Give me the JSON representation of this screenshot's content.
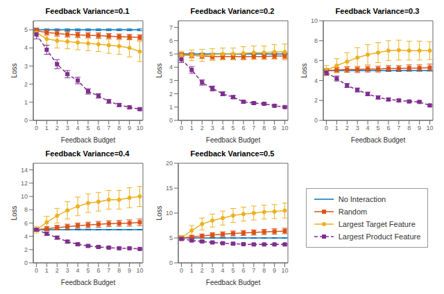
{
  "chart_data": [
    {
      "type": "line",
      "title": "Feedback Variance=0.1",
      "xlabel": "Feedback Budget",
      "ylabel": "Loss",
      "x": [
        0,
        1,
        2,
        3,
        4,
        5,
        6,
        7,
        8,
        9,
        10
      ],
      "xlim": [
        -0.3,
        10.3
      ],
      "xticks": [
        0,
        1,
        2,
        3,
        4,
        5,
        6,
        7,
        8,
        9,
        10
      ],
      "ylim": [
        0,
        5.5
      ],
      "yticks": [
        0,
        1,
        2,
        3,
        4,
        5
      ],
      "grid": false,
      "series": [
        {
          "name": "No Interaction",
          "color": "#0072BD",
          "marker": "none",
          "line_style": "solid",
          "values": [
            5.0,
            5.0,
            5.0,
            5.0,
            5.0,
            5.0,
            5.0,
            5.0,
            5.0,
            5.0,
            5.0
          ],
          "error": [
            0.05,
            0.05,
            0.05,
            0.05,
            0.05,
            0.05,
            0.05,
            0.05,
            0.05,
            0.05,
            0.05
          ]
        },
        {
          "name": "Random",
          "color": "#D95319",
          "marker": "square",
          "line_style": "solid",
          "values": [
            4.95,
            4.85,
            4.8,
            4.75,
            4.72,
            4.7,
            4.68,
            4.65,
            4.62,
            4.6,
            4.58
          ],
          "error": [
            0.15,
            0.15,
            0.15,
            0.15,
            0.15,
            0.15,
            0.15,
            0.15,
            0.15,
            0.15,
            0.15
          ]
        },
        {
          "name": "Largest Target Feature",
          "color": "#EDB120",
          "marker": "circle",
          "line_style": "solid",
          "values": [
            4.85,
            4.5,
            4.4,
            4.35,
            4.3,
            4.25,
            4.2,
            4.15,
            4.1,
            4.0,
            3.8
          ],
          "error": [
            0.15,
            0.35,
            0.4,
            0.4,
            0.4,
            0.4,
            0.4,
            0.45,
            0.45,
            0.5,
            0.55
          ]
        },
        {
          "name": "Largest Product Feature",
          "color": "#7E2F8E",
          "marker": "square",
          "line_style": "dashed",
          "values": [
            4.75,
            3.9,
            3.1,
            2.55,
            2.2,
            1.6,
            1.35,
            1.05,
            0.85,
            0.72,
            0.62
          ],
          "error": [
            0.25,
            0.25,
            0.25,
            0.2,
            0.18,
            0.15,
            0.12,
            0.1,
            0.08,
            0.07,
            0.06
          ]
        }
      ]
    },
    {
      "type": "line",
      "title": "Feedback Variance=0.2",
      "xlabel": "Feedback Budget",
      "ylabel": "Loss",
      "x": [
        0,
        1,
        2,
        3,
        4,
        5,
        6,
        7,
        8,
        9,
        10
      ],
      "xlim": [
        -0.3,
        10.3
      ],
      "xticks": [
        0,
        1,
        2,
        3,
        4,
        5,
        6,
        7,
        8,
        9,
        10
      ],
      "ylim": [
        0,
        7.5
      ],
      "yticks": [
        0,
        1,
        2,
        3,
        4,
        5,
        6,
        7
      ],
      "grid": false,
      "series": [
        {
          "name": "No Interaction",
          "color": "#0072BD",
          "marker": "none",
          "line_style": "solid",
          "values": [
            5.0,
            5.0,
            5.0,
            5.0,
            5.0,
            5.0,
            5.0,
            5.0,
            5.0,
            5.0,
            5.0
          ],
          "error": [
            0.05,
            0.05,
            0.05,
            0.05,
            0.05,
            0.05,
            0.05,
            0.05,
            0.05,
            0.05,
            0.05
          ]
        },
        {
          "name": "Random",
          "color": "#D95319",
          "marker": "square",
          "line_style": "solid",
          "values": [
            4.95,
            4.9,
            4.85,
            4.8,
            4.8,
            4.8,
            4.8,
            4.8,
            4.8,
            4.85,
            4.85
          ],
          "error": [
            0.15,
            0.2,
            0.2,
            0.2,
            0.2,
            0.2,
            0.2,
            0.2,
            0.2,
            0.2,
            0.2
          ]
        },
        {
          "name": "Largest Target Feature",
          "color": "#EDB120",
          "marker": "circle",
          "line_style": "solid",
          "values": [
            4.9,
            4.9,
            4.9,
            4.95,
            5.0,
            5.0,
            5.05,
            5.1,
            5.1,
            5.15,
            5.15
          ],
          "error": [
            0.3,
            0.4,
            0.45,
            0.45,
            0.45,
            0.45,
            0.5,
            0.5,
            0.5,
            0.55,
            0.6
          ]
        },
        {
          "name": "Largest Product Feature",
          "color": "#7E2F8E",
          "marker": "square",
          "line_style": "dashed",
          "values": [
            4.6,
            3.8,
            2.85,
            2.4,
            2.0,
            1.75,
            1.4,
            1.3,
            1.25,
            1.1,
            1.0
          ],
          "error": [
            0.25,
            0.25,
            0.2,
            0.18,
            0.15,
            0.12,
            0.1,
            0.08,
            0.08,
            0.07,
            0.06
          ]
        }
      ]
    },
    {
      "type": "line",
      "title": "Feedback Variance=0.3",
      "xlabel": "Feedback Budget",
      "ylabel": "Loss",
      "x": [
        0,
        1,
        2,
        3,
        4,
        5,
        6,
        7,
        8,
        9,
        10
      ],
      "xlim": [
        -0.3,
        10.3
      ],
      "xticks": [
        0,
        1,
        2,
        3,
        4,
        5,
        6,
        7,
        8,
        9,
        10
      ],
      "ylim": [
        0,
        10
      ],
      "yticks": [
        0,
        2,
        4,
        6,
        8,
        10
      ],
      "grid": false,
      "series": [
        {
          "name": "No Interaction",
          "color": "#0072BD",
          "marker": "none",
          "line_style": "solid",
          "values": [
            5.0,
            5.0,
            5.0,
            5.0,
            5.0,
            5.0,
            5.0,
            5.0,
            5.0,
            5.0,
            5.0
          ],
          "error": [
            0.05,
            0.05,
            0.05,
            0.05,
            0.05,
            0.05,
            0.05,
            0.05,
            0.05,
            0.05,
            0.05
          ]
        },
        {
          "name": "Random",
          "color": "#D95319",
          "marker": "square",
          "line_style": "solid",
          "values": [
            5.0,
            5.05,
            5.1,
            5.1,
            5.15,
            5.15,
            5.2,
            5.2,
            5.25,
            5.25,
            5.3
          ],
          "error": [
            0.2,
            0.25,
            0.28,
            0.3,
            0.3,
            0.3,
            0.3,
            0.3,
            0.32,
            0.32,
            0.35
          ]
        },
        {
          "name": "Largest Target Feature",
          "color": "#EDB120",
          "marker": "circle",
          "line_style": "solid",
          "values": [
            5.0,
            5.5,
            5.9,
            6.3,
            6.6,
            6.8,
            7.0,
            7.05,
            7.0,
            7.0,
            7.0
          ],
          "error": [
            0.5,
            0.7,
            0.9,
            1.0,
            1.0,
            1.0,
            1.0,
            1.0,
            0.95,
            0.95,
            0.9
          ]
        },
        {
          "name": "Largest Product Feature",
          "color": "#7E2F8E",
          "marker": "square",
          "line_style": "dashed",
          "values": [
            4.8,
            4.2,
            3.5,
            3.05,
            2.65,
            2.3,
            2.1,
            2.0,
            1.9,
            1.85,
            1.5
          ],
          "error": [
            0.25,
            0.25,
            0.2,
            0.2,
            0.18,
            0.15,
            0.12,
            0.12,
            0.1,
            0.1,
            0.08
          ]
        }
      ]
    },
    {
      "type": "line",
      "title": "Feedback Variance=0.4",
      "xlabel": "Feedback Budget",
      "ylabel": "Loss",
      "x": [
        0,
        1,
        2,
        3,
        4,
        5,
        6,
        7,
        8,
        9,
        10
      ],
      "xlim": [
        -0.3,
        10.3
      ],
      "xticks": [
        0,
        1,
        2,
        3,
        4,
        5,
        6,
        7,
        8,
        9,
        10
      ],
      "ylim": [
        0,
        15
      ],
      "yticks": [
        0,
        2,
        4,
        6,
        8,
        10,
        12,
        14
      ],
      "grid": false,
      "series": [
        {
          "name": "No Interaction",
          "color": "#0072BD",
          "marker": "none",
          "line_style": "solid",
          "values": [
            5.0,
            5.0,
            5.0,
            5.0,
            5.0,
            5.0,
            5.0,
            5.0,
            5.0,
            5.0,
            5.0
          ],
          "error": [
            0.05,
            0.05,
            0.05,
            0.05,
            0.05,
            0.05,
            0.05,
            0.05,
            0.05,
            0.05,
            0.05
          ]
        },
        {
          "name": "Random",
          "color": "#D95319",
          "marker": "square",
          "line_style": "solid",
          "values": [
            5.0,
            5.15,
            5.3,
            5.45,
            5.6,
            5.7,
            5.8,
            5.9,
            5.95,
            6.0,
            6.1
          ],
          "error": [
            0.2,
            0.3,
            0.35,
            0.38,
            0.4,
            0.42,
            0.45,
            0.45,
            0.45,
            0.48,
            0.5
          ]
        },
        {
          "name": "Largest Target Feature",
          "color": "#EDB120",
          "marker": "circle",
          "line_style": "solid",
          "values": [
            5.0,
            6.1,
            7.1,
            7.9,
            8.5,
            9.0,
            9.2,
            9.5,
            9.5,
            9.8,
            10.0
          ],
          "error": [
            0.5,
            0.9,
            1.1,
            1.3,
            1.4,
            1.4,
            1.4,
            1.4,
            1.4,
            1.5,
            1.5
          ]
        },
        {
          "name": "Largest Product Feature",
          "color": "#7E2F8E",
          "marker": "square",
          "line_style": "dashed",
          "values": [
            5.0,
            4.4,
            3.8,
            3.2,
            2.8,
            2.55,
            2.4,
            2.3,
            2.2,
            2.2,
            2.1
          ],
          "error": [
            0.25,
            0.25,
            0.22,
            0.2,
            0.18,
            0.15,
            0.15,
            0.12,
            0.12,
            0.1,
            0.1
          ]
        }
      ]
    },
    {
      "type": "line",
      "title": "Feedback Variance=0.5",
      "xlabel": "Feedback Budget",
      "ylabel": "Loss",
      "x": [
        0,
        1,
        2,
        3,
        4,
        5,
        6,
        7,
        8,
        9,
        10
      ],
      "xlim": [
        -0.3,
        10.3
      ],
      "xticks": [
        0,
        1,
        2,
        3,
        4,
        5,
        6,
        7,
        8,
        9,
        10
      ],
      "ylim": [
        0,
        20
      ],
      "yticks": [
        0,
        5,
        10,
        15,
        20
      ],
      "grid": false,
      "series": [
        {
          "name": "No Interaction",
          "color": "#0072BD",
          "marker": "none",
          "line_style": "solid",
          "values": [
            5.0,
            5.0,
            5.0,
            5.0,
            5.0,
            5.0,
            5.0,
            5.0,
            5.0,
            5.0,
            5.0
          ],
          "error": [
            0.05,
            0.05,
            0.05,
            0.05,
            0.05,
            0.05,
            0.05,
            0.05,
            0.05,
            0.05,
            0.05
          ]
        },
        {
          "name": "Random",
          "color": "#D95319",
          "marker": "square",
          "line_style": "solid",
          "values": [
            5.0,
            5.2,
            5.4,
            5.6,
            5.75,
            5.9,
            6.0,
            6.1,
            6.2,
            6.3,
            6.4
          ],
          "error": [
            0.2,
            0.3,
            0.4,
            0.45,
            0.48,
            0.5,
            0.5,
            0.52,
            0.52,
            0.55,
            0.55
          ]
        },
        {
          "name": "Largest Target Feature",
          "color": "#EDB120",
          "marker": "circle",
          "line_style": "solid",
          "values": [
            5.0,
            6.5,
            7.8,
            8.5,
            9.0,
            9.5,
            9.8,
            10.0,
            10.2,
            10.3,
            10.5
          ],
          "error": [
            0.5,
            1.0,
            1.2,
            1.3,
            1.4,
            1.4,
            1.4,
            1.4,
            1.4,
            1.4,
            1.5
          ]
        },
        {
          "name": "Largest Product Feature",
          "color": "#7E2F8E",
          "marker": "square",
          "line_style": "dashed",
          "values": [
            4.8,
            4.5,
            4.3,
            4.1,
            3.95,
            3.85,
            3.75,
            3.7,
            3.7,
            3.7,
            3.7
          ],
          "error": [
            0.25,
            0.22,
            0.2,
            0.18,
            0.15,
            0.15,
            0.12,
            0.12,
            0.1,
            0.1,
            0.1
          ]
        }
      ]
    }
  ],
  "legend": "lower right"
}
